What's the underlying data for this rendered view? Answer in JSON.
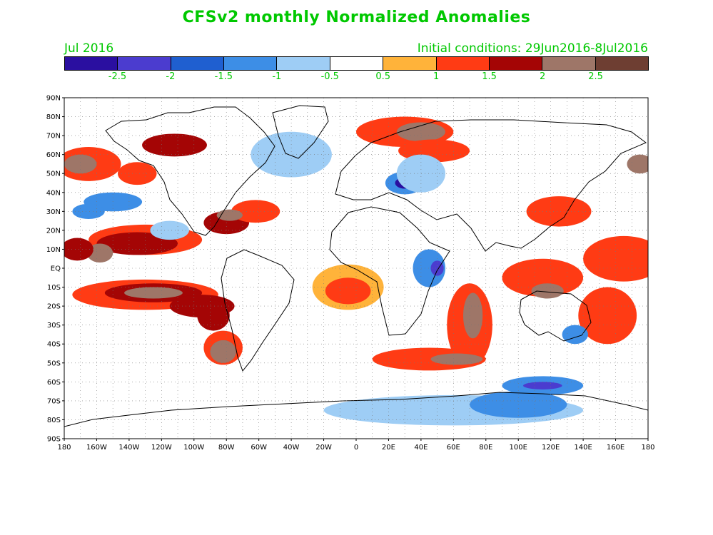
{
  "title": "CFSv2 monthly Normalized Anomalies",
  "valid_month": "Jul 2016",
  "initial_conditions": "Initial conditions: 29Jun2016-8Jul2016",
  "legend": {
    "colors": [
      "#2a0fa0",
      "#4b3ccf",
      "#1f5fd0",
      "#3d8ee6",
      "#9ecdf5",
      "#ffffff",
      "#ffb33a",
      "#ff3b14",
      "#a40505",
      "#9e7668",
      "#6e3e32"
    ],
    "labels": [
      "-2.5",
      "-2",
      "-1.5",
      "-1",
      "-0.5",
      "0.5",
      "1",
      "1.5",
      "2",
      "2.5"
    ]
  },
  "map": {
    "lat_labels": [
      "90N",
      "80N",
      "70N",
      "60N",
      "50N",
      "40N",
      "30N",
      "20N",
      "10N",
      "EQ",
      "10S",
      "20S",
      "30S",
      "40S",
      "50S",
      "60S",
      "70S",
      "80S",
      "90S"
    ],
    "lon_labels": [
      "180",
      "160W",
      "140W",
      "120W",
      "100W",
      "80W",
      "60W",
      "40W",
      "20W",
      "0",
      "20E",
      "40E",
      "60E",
      "80E",
      "100E",
      "120E",
      "140E",
      "160E",
      "180"
    ],
    "grid": "dotted",
    "anomaly_blobs": [
      {
        "lon": -130,
        "lat": 15,
        "rx": 35,
        "ry": 8,
        "level": 7
      },
      {
        "lon": -135,
        "lat": 13,
        "rx": 25,
        "ry": 6,
        "level": 8
      },
      {
        "lon": -158,
        "lat": 8,
        "rx": 8,
        "ry": 5,
        "level": 9
      },
      {
        "lon": -172,
        "lat": 10,
        "rx": 10,
        "ry": 6,
        "level": 8
      },
      {
        "lon": -130,
        "lat": -14,
        "rx": 45,
        "ry": 8,
        "level": 7
      },
      {
        "lon": -125,
        "lat": -13,
        "rx": 30,
        "ry": 5,
        "level": 8
      },
      {
        "lon": -125,
        "lat": -13,
        "rx": 18,
        "ry": 3,
        "level": 9
      },
      {
        "lon": -95,
        "lat": -20,
        "rx": 20,
        "ry": 6,
        "level": 8
      },
      {
        "lon": -88,
        "lat": -25,
        "rx": 10,
        "ry": 8,
        "level": 8
      },
      {
        "lon": -82,
        "lat": -42,
        "rx": 12,
        "ry": 9,
        "level": 7
      },
      {
        "lon": -82,
        "lat": -44,
        "rx": 8,
        "ry": 6,
        "level": 9
      },
      {
        "lon": -165,
        "lat": 55,
        "rx": 20,
        "ry": 9,
        "level": 7
      },
      {
        "lon": -170,
        "lat": 55,
        "rx": 10,
        "ry": 5,
        "level": 9
      },
      {
        "lon": -135,
        "lat": 50,
        "rx": 12,
        "ry": 6,
        "level": 7
      },
      {
        "lon": -112,
        "lat": 65,
        "rx": 20,
        "ry": 6,
        "level": 8
      },
      {
        "lon": -80,
        "lat": 24,
        "rx": 14,
        "ry": 6,
        "level": 8
      },
      {
        "lon": -62,
        "lat": 30,
        "rx": 15,
        "ry": 6,
        "level": 7
      },
      {
        "lon": -78,
        "lat": 28,
        "rx": 8,
        "ry": 3,
        "level": 9
      },
      {
        "lon": -5,
        "lat": -10,
        "rx": 22,
        "ry": 12,
        "level": 6
      },
      {
        "lon": -5,
        "lat": -12,
        "rx": 14,
        "ry": 7,
        "level": 7
      },
      {
        "lon": 30,
        "lat": 72,
        "rx": 30,
        "ry": 8,
        "level": 7
      },
      {
        "lon": 40,
        "lat": 72,
        "rx": 15,
        "ry": 5,
        "level": 9
      },
      {
        "lon": 48,
        "lat": 62,
        "rx": 22,
        "ry": 6,
        "level": 7
      },
      {
        "lon": 70,
        "lat": -30,
        "rx": 14,
        "ry": 22,
        "level": 7
      },
      {
        "lon": 72,
        "lat": -25,
        "rx": 6,
        "ry": 12,
        "level": 9
      },
      {
        "lon": 45,
        "lat": -48,
        "rx": 35,
        "ry": 6,
        "level": 7
      },
      {
        "lon": 62,
        "lat": -48,
        "rx": 16,
        "ry": 3,
        "level": 9
      },
      {
        "lon": 115,
        "lat": -5,
        "rx": 25,
        "ry": 10,
        "level": 7
      },
      {
        "lon": 118,
        "lat": -12,
        "rx": 10,
        "ry": 4,
        "level": 9
      },
      {
        "lon": 165,
        "lat": 5,
        "rx": 25,
        "ry": 12,
        "level": 7
      },
      {
        "lon": 155,
        "lat": -25,
        "rx": 18,
        "ry": 15,
        "level": 7
      },
      {
        "lon": 175,
        "lat": 55,
        "rx": 8,
        "ry": 5,
        "level": 9
      },
      {
        "lon": 125,
        "lat": 30,
        "rx": 20,
        "ry": 8,
        "level": 7
      },
      {
        "lon": -150,
        "lat": 35,
        "rx": 18,
        "ry": 5,
        "level": 3
      },
      {
        "lon": 30,
        "lat": 45,
        "rx": 12,
        "ry": 6,
        "level": 3
      },
      {
        "lon": 30,
        "lat": 45,
        "rx": 6,
        "ry": 3,
        "level": 0
      },
      {
        "lon": 45,
        "lat": 0,
        "rx": 10,
        "ry": 10,
        "level": 3
      },
      {
        "lon": 50,
        "lat": 0,
        "rx": 4,
        "ry": 4,
        "level": 1
      },
      {
        "lon": 115,
        "lat": -62,
        "rx": 25,
        "ry": 5,
        "level": 3
      },
      {
        "lon": 115,
        "lat": -62,
        "rx": 12,
        "ry": 2,
        "level": 1
      },
      {
        "lon": 60,
        "lat": -75,
        "rx": 80,
        "ry": 8,
        "level": 4
      },
      {
        "lon": 100,
        "lat": -72,
        "rx": 30,
        "ry": 7,
        "level": 3
      },
      {
        "lon": 135,
        "lat": -35,
        "rx": 8,
        "ry": 5,
        "level": 3
      },
      {
        "lon": -40,
        "lat": 60,
        "rx": 25,
        "ry": 12,
        "level": 4
      },
      {
        "lon": 40,
        "lat": 50,
        "rx": 15,
        "ry": 10,
        "level": 4
      },
      {
        "lon": -115,
        "lat": 20,
        "rx": 12,
        "ry": 5,
        "level": 4
      },
      {
        "lon": -165,
        "lat": 30,
        "rx": 10,
        "ry": 4,
        "level": 3
      }
    ]
  }
}
